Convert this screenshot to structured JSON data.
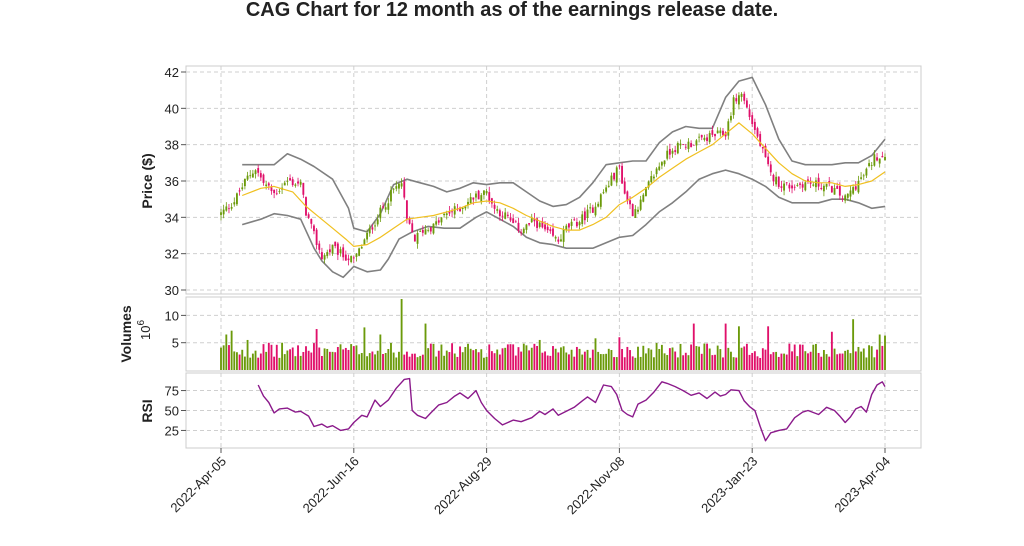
{
  "chart_data": {
    "type": "candlestick",
    "ticker": "CAG",
    "title": "CAG Chart for 12 month as of the earnings release date.",
    "colors": {
      "up": "#6b9a0a",
      "down": "#e0106a",
      "ma": "#f0c020",
      "bands": "#808080",
      "rsi": "#8b1a8b"
    },
    "x_tick_labels": [
      "2022-Apr-05",
      "2022-Jun-16",
      "2022-Aug-29",
      "2022-Nov-08",
      "2023-Jan-23",
      "2023-Apr-04"
    ],
    "x_tick_index": [
      0,
      50,
      100,
      150,
      200,
      250
    ],
    "n_sessions": 251,
    "price_panel": {
      "ylabel": "Price ($)",
      "ylim": [
        30,
        42
      ],
      "yticks": [
        "30",
        "32",
        "34",
        "36",
        "38",
        "40",
        "42"
      ],
      "close_path": [
        [
          0,
          34.2
        ],
        [
          5,
          34.9
        ],
        [
          10,
          36.2
        ],
        [
          13,
          36.7
        ],
        [
          16,
          35.9
        ],
        [
          20,
          35.3
        ],
        [
          25,
          36.0
        ],
        [
          30,
          35.8
        ],
        [
          32,
          34.3
        ],
        [
          35,
          33.0
        ],
        [
          38,
          31.8
        ],
        [
          42,
          32.3
        ],
        [
          46,
          31.9
        ],
        [
          50,
          31.6
        ],
        [
          55,
          33.0
        ],
        [
          60,
          34.3
        ],
        [
          65,
          35.5
        ],
        [
          68,
          35.9
        ],
        [
          70,
          33.8
        ],
        [
          73,
          32.8
        ],
        [
          76,
          33.3
        ],
        [
          80,
          33.5
        ],
        [
          85,
          34.2
        ],
        [
          90,
          34.5
        ],
        [
          95,
          35.1
        ],
        [
          100,
          35.4
        ],
        [
          103,
          34.5
        ],
        [
          107,
          34.1
        ],
        [
          110,
          33.6
        ],
        [
          113,
          33.3
        ],
        [
          118,
          33.8
        ],
        [
          123,
          33.1
        ],
        [
          127,
          32.7
        ],
        [
          130,
          33.4
        ],
        [
          135,
          33.8
        ],
        [
          140,
          34.5
        ],
        [
          145,
          35.6
        ],
        [
          150,
          36.8
        ],
        [
          152,
          35.3
        ],
        [
          155,
          34.3
        ],
        [
          158,
          34.8
        ],
        [
          162,
          36.1
        ],
        [
          166,
          37.1
        ],
        [
          170,
          37.8
        ],
        [
          175,
          38.0
        ],
        [
          180,
          38.2
        ],
        [
          185,
          38.5
        ],
        [
          190,
          38.6
        ],
        [
          193,
          40.4
        ],
        [
          196,
          40.8
        ],
        [
          199,
          39.6
        ],
        [
          203,
          38.0
        ],
        [
          207,
          36.3
        ],
        [
          211,
          35.8
        ],
        [
          215,
          35.7
        ],
        [
          220,
          35.9
        ],
        [
          225,
          35.8
        ],
        [
          230,
          35.6
        ],
        [
          235,
          35.0
        ],
        [
          238,
          35.6
        ],
        [
          242,
          36.3
        ],
        [
          246,
          37.3
        ],
        [
          250,
          37.5
        ]
      ],
      "moving_average": [
        [
          8,
          35.2
        ],
        [
          15,
          35.6
        ],
        [
          20,
          35.7
        ],
        [
          27,
          35.4
        ],
        [
          32,
          34.6
        ],
        [
          37,
          34.0
        ],
        [
          42,
          33.4
        ],
        [
          47,
          32.8
        ],
        [
          50,
          32.4
        ],
        [
          55,
          32.5
        ],
        [
          60,
          32.9
        ],
        [
          65,
          33.4
        ],
        [
          70,
          33.9
        ],
        [
          75,
          34.0
        ],
        [
          80,
          34.1
        ],
        [
          85,
          34.3
        ],
        [
          90,
          34.5
        ],
        [
          95,
          34.8
        ],
        [
          100,
          34.9
        ],
        [
          105,
          34.8
        ],
        [
          110,
          34.5
        ],
        [
          115,
          34.1
        ],
        [
          120,
          33.8
        ],
        [
          125,
          33.5
        ],
        [
          130,
          33.3
        ],
        [
          135,
          33.3
        ],
        [
          140,
          33.6
        ],
        [
          145,
          34.0
        ],
        [
          150,
          34.7
        ],
        [
          155,
          35.1
        ],
        [
          160,
          35.6
        ],
        [
          165,
          36.2
        ],
        [
          170,
          36.7
        ],
        [
          175,
          37.2
        ],
        [
          180,
          37.6
        ],
        [
          185,
          38.0
        ],
        [
          190,
          38.6
        ],
        [
          195,
          39.2
        ],
        [
          200,
          38.6
        ],
        [
          205,
          37.8
        ],
        [
          210,
          37.0
        ],
        [
          215,
          36.4
        ],
        [
          220,
          36.0
        ],
        [
          225,
          35.9
        ],
        [
          230,
          35.9
        ],
        [
          235,
          35.7
        ],
        [
          240,
          35.8
        ],
        [
          245,
          36.0
        ],
        [
          250,
          36.5
        ]
      ],
      "upper_band": [
        [
          8,
          36.9
        ],
        [
          15,
          36.9
        ],
        [
          20,
          36.9
        ],
        [
          25,
          37.5
        ],
        [
          30,
          37.2
        ],
        [
          35,
          36.8
        ],
        [
          42,
          36.1
        ],
        [
          48,
          34.5
        ],
        [
          50,
          33.4
        ],
        [
          55,
          33.2
        ],
        [
          60,
          34.2
        ],
        [
          65,
          35.8
        ],
        [
          70,
          36.1
        ],
        [
          75,
          35.9
        ],
        [
          80,
          35.7
        ],
        [
          85,
          35.4
        ],
        [
          90,
          35.6
        ],
        [
          95,
          35.9
        ],
        [
          100,
          35.8
        ],
        [
          105,
          35.9
        ],
        [
          110,
          35.9
        ],
        [
          115,
          35.4
        ],
        [
          120,
          34.9
        ],
        [
          125,
          34.6
        ],
        [
          130,
          34.7
        ],
        [
          135,
          35.1
        ],
        [
          140,
          35.9
        ],
        [
          145,
          36.9
        ],
        [
          150,
          37.0
        ],
        [
          155,
          37.1
        ],
        [
          160,
          37.1
        ],
        [
          165,
          38.1
        ],
        [
          170,
          38.7
        ],
        [
          175,
          39.0
        ],
        [
          180,
          38.9
        ],
        [
          185,
          38.9
        ],
        [
          190,
          40.6
        ],
        [
          195,
          41.5
        ],
        [
          200,
          41.7
        ],
        [
          205,
          40.2
        ],
        [
          210,
          38.3
        ],
        [
          215,
          37.1
        ],
        [
          220,
          36.9
        ],
        [
          225,
          36.9
        ],
        [
          230,
          36.9
        ],
        [
          235,
          37.0
        ],
        [
          240,
          37.0
        ],
        [
          245,
          37.4
        ],
        [
          250,
          38.3
        ]
      ],
      "lower_band": [
        [
          8,
          33.6
        ],
        [
          15,
          33.9
        ],
        [
          20,
          34.2
        ],
        [
          25,
          34.1
        ],
        [
          30,
          33.9
        ],
        [
          35,
          32.3
        ],
        [
          38,
          31.6
        ],
        [
          42,
          31.0
        ],
        [
          46,
          30.7
        ],
        [
          50,
          31.3
        ],
        [
          55,
          31.0
        ],
        [
          60,
          31.1
        ],
        [
          63,
          31.7
        ],
        [
          67,
          32.8
        ],
        [
          72,
          33.2
        ],
        [
          78,
          33.5
        ],
        [
          84,
          33.4
        ],
        [
          90,
          33.4
        ],
        [
          96,
          34.0
        ],
        [
          100,
          34.3
        ],
        [
          105,
          33.9
        ],
        [
          110,
          33.5
        ],
        [
          115,
          32.9
        ],
        [
          120,
          32.6
        ],
        [
          125,
          32.5
        ],
        [
          130,
          32.3
        ],
        [
          135,
          32.3
        ],
        [
          140,
          32.3
        ],
        [
          145,
          32.6
        ],
        [
          150,
          32.9
        ],
        [
          155,
          33.0
        ],
        [
          160,
          33.6
        ],
        [
          165,
          34.3
        ],
        [
          170,
          34.8
        ],
        [
          175,
          35.4
        ],
        [
          180,
          36.1
        ],
        [
          185,
          36.4
        ],
        [
          190,
          36.6
        ],
        [
          195,
          36.4
        ],
        [
          200,
          36.1
        ],
        [
          205,
          35.7
        ],
        [
          210,
          35.1
        ],
        [
          215,
          34.8
        ],
        [
          220,
          34.8
        ],
        [
          225,
          34.8
        ],
        [
          230,
          35.0
        ],
        [
          235,
          35.0
        ],
        [
          240,
          34.8
        ],
        [
          245,
          34.5
        ],
        [
          250,
          34.6
        ]
      ]
    },
    "volume_panel": {
      "ylabel": "Volumes",
      "scale_label": "10",
      "scale_exp": "6",
      "ylim": [
        0,
        13
      ],
      "yticks": [
        "5",
        "10"
      ],
      "unit": "shares (millions)",
      "peaks": [
        [
          2,
          6.5
        ],
        [
          4,
          7.2
        ],
        [
          10,
          5.5
        ],
        [
          36,
          7.5
        ],
        [
          54,
          7.8
        ],
        [
          60,
          6.5
        ],
        [
          68,
          13.0
        ],
        [
          77,
          8.5
        ],
        [
          78,
          4.0
        ],
        [
          120,
          5.5
        ],
        [
          141,
          5.8
        ],
        [
          150,
          6.0
        ],
        [
          178,
          8.5
        ],
        [
          190,
          8.5
        ],
        [
          195,
          8.0
        ],
        [
          206,
          8.0
        ],
        [
          230,
          7.0
        ],
        [
          238,
          9.3
        ],
        [
          248,
          6.5
        ],
        [
          250,
          6.3
        ]
      ]
    },
    "rsi_panel": {
      "ylabel": "RSI",
      "ylim": [
        3,
        97
      ],
      "yticks": [
        "25",
        "50",
        "75"
      ],
      "values": [
        [
          14,
          82
        ],
        [
          16,
          68
        ],
        [
          18,
          60
        ],
        [
          20,
          47
        ],
        [
          22,
          52
        ],
        [
          25,
          53
        ],
        [
          28,
          48
        ],
        [
          30,
          49
        ],
        [
          33,
          43
        ],
        [
          35,
          30
        ],
        [
          38,
          33
        ],
        [
          40,
          29
        ],
        [
          42,
          31
        ],
        [
          45,
          25
        ],
        [
          48,
          27
        ],
        [
          50,
          35
        ],
        [
          53,
          44
        ],
        [
          55,
          42
        ],
        [
          58,
          63
        ],
        [
          60,
          55
        ],
        [
          63,
          63
        ],
        [
          66,
          78
        ],
        [
          69,
          89
        ],
        [
          71,
          90
        ],
        [
          72,
          50
        ],
        [
          74,
          44
        ],
        [
          77,
          40
        ],
        [
          79,
          47
        ],
        [
          82,
          57
        ],
        [
          85,
          60
        ],
        [
          88,
          68
        ],
        [
          90,
          72
        ],
        [
          93,
          65
        ],
        [
          96,
          75
        ],
        [
          98,
          60
        ],
        [
          100,
          50
        ],
        [
          103,
          40
        ],
        [
          106,
          32
        ],
        [
          110,
          38
        ],
        [
          113,
          36
        ],
        [
          117,
          41
        ],
        [
          120,
          49
        ],
        [
          122,
          45
        ],
        [
          125,
          52
        ],
        [
          127,
          44
        ],
        [
          130,
          49
        ],
        [
          133,
          54
        ],
        [
          136,
          62
        ],
        [
          138,
          67
        ],
        [
          141,
          60
        ],
        [
          144,
          82
        ],
        [
          147,
          80
        ],
        [
          149,
          70
        ],
        [
          151,
          50
        ],
        [
          153,
          45
        ],
        [
          155,
          42
        ],
        [
          157,
          58
        ],
        [
          160,
          63
        ],
        [
          163,
          73
        ],
        [
          166,
          86
        ],
        [
          168,
          84
        ],
        [
          171,
          80
        ],
        [
          174,
          75
        ],
        [
          177,
          69
        ],
        [
          180,
          72
        ],
        [
          183,
          65
        ],
        [
          186,
          73
        ],
        [
          188,
          68
        ],
        [
          190,
          70
        ],
        [
          192,
          76
        ],
        [
          195,
          75
        ],
        [
          197,
          62
        ],
        [
          199,
          55
        ],
        [
          201,
          50
        ],
        [
          203,
          30
        ],
        [
          205,
          12
        ],
        [
          207,
          22
        ],
        [
          210,
          25
        ],
        [
          213,
          27
        ],
        [
          216,
          41
        ],
        [
          219,
          48
        ],
        [
          221,
          50
        ],
        [
          225,
          45
        ],
        [
          228,
          54
        ],
        [
          231,
          50
        ],
        [
          233,
          43
        ],
        [
          235,
          35
        ],
        [
          237,
          42
        ],
        [
          239,
          52
        ],
        [
          241,
          55
        ],
        [
          243,
          48
        ],
        [
          245,
          70
        ],
        [
          247,
          82
        ],
        [
          249,
          86
        ],
        [
          250,
          80
        ]
      ]
    }
  }
}
